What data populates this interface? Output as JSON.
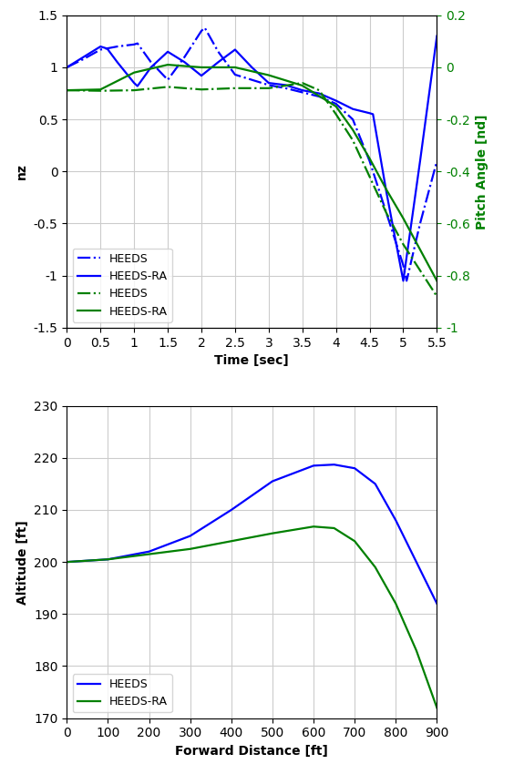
{
  "chart_data": [
    {
      "type": "line",
      "x_label": "Time [sec]",
      "y_label": "nz",
      "y2_label": "Pitch Angle [nd]",
      "xlim": [
        0,
        5.5
      ],
      "xticks": [
        0,
        0.5,
        1,
        1.5,
        2,
        2.5,
        3,
        3.5,
        4,
        4.5,
        5,
        5.5
      ],
      "ylim": [
        -1.5,
        1.5
      ],
      "yticks": [
        -1.5,
        -1,
        -0.5,
        0,
        0.5,
        1,
        1.5
      ],
      "y2lim": [
        -1,
        0.2
      ],
      "y2ticks": [
        -1,
        -0.8,
        -0.6,
        -0.4,
        -0.2,
        0,
        0.2
      ],
      "grid": true,
      "legend": "lower left",
      "series": [
        {
          "name": "HEEDS",
          "color": "#0000ff",
          "line_style": "dashdot",
          "x": [
            0,
            0.25,
            0.5,
            0.75,
            1.0,
            1.05,
            1.25,
            1.5,
            1.75,
            2.0,
            2.05,
            2.25,
            2.5,
            2.75,
            3.0,
            3.25,
            3.5,
            3.75,
            4.0,
            4.25,
            4.5,
            4.75,
            5.0,
            5.05,
            5.25,
            5.5
          ],
          "values": [
            1.0,
            1.08,
            1.17,
            1.2,
            1.22,
            1.23,
            1.05,
            0.88,
            1.1,
            1.35,
            1.38,
            1.15,
            0.93,
            0.88,
            0.83,
            0.8,
            0.76,
            0.72,
            0.65,
            0.5,
            0.1,
            -0.4,
            -0.9,
            -1.05,
            -0.5,
            0.1
          ]
        },
        {
          "name": "HEEDS-RA",
          "color": "#0000ff",
          "line_style": "solid",
          "x": [
            0,
            0.25,
            0.5,
            0.6,
            0.75,
            1.0,
            1.05,
            1.25,
            1.5,
            1.75,
            2.0,
            2.25,
            2.5,
            2.75,
            3.0,
            3.25,
            3.5,
            3.75,
            4.0,
            4.25,
            4.5,
            4.55,
            4.75,
            5.0,
            5.25,
            5.5
          ],
          "values": [
            1.0,
            1.1,
            1.2,
            1.18,
            1.05,
            0.85,
            0.82,
            1.0,
            1.15,
            1.05,
            0.92,
            1.05,
            1.17,
            1.0,
            0.85,
            0.83,
            0.78,
            0.75,
            0.68,
            0.6,
            0.56,
            0.55,
            -0.2,
            -1.05,
            0.1,
            1.3
          ]
        },
        {
          "name": "HEEDS",
          "color": "#008000",
          "line_style": "dashdot",
          "axis": "y2",
          "x": [
            0,
            0.5,
            1.0,
            1.5,
            2.0,
            2.5,
            3.0,
            3.5,
            3.75,
            4.0,
            4.25,
            4.5,
            4.75,
            5.0,
            5.25,
            5.5
          ],
          "values": [
            -0.088,
            -0.09,
            -0.088,
            -0.075,
            -0.085,
            -0.08,
            -0.08,
            -0.06,
            -0.088,
            -0.18,
            -0.28,
            -0.42,
            -0.56,
            -0.68,
            -0.78,
            -0.88
          ]
        },
        {
          "name": "HEEDS-RA",
          "color": "#008000",
          "line_style": "solid",
          "axis": "y2",
          "x": [
            0,
            0.5,
            1.0,
            1.5,
            2.0,
            2.5,
            3.0,
            3.5,
            4.0,
            4.25,
            4.5,
            4.75,
            5.0,
            5.25,
            5.5
          ],
          "values": [
            -0.088,
            -0.085,
            -0.02,
            0.01,
            0.0,
            0.0,
            -0.03,
            -0.07,
            -0.15,
            -0.24,
            -0.35,
            -0.47,
            -0.58,
            -0.7,
            -0.82
          ]
        }
      ]
    },
    {
      "type": "line",
      "x_label": "Forward Distance [ft]",
      "y_label": "Altitude [ft]",
      "xlim": [
        0,
        900
      ],
      "xticks": [
        0,
        100,
        200,
        300,
        400,
        500,
        600,
        700,
        800,
        900
      ],
      "ylim": [
        170,
        230
      ],
      "yticks": [
        170,
        180,
        190,
        200,
        210,
        220,
        230
      ],
      "grid": true,
      "legend": "lower left",
      "series": [
        {
          "name": "HEEDS",
          "color": "#0000ff",
          "line_style": "solid",
          "x": [
            0,
            100,
            200,
            300,
            400,
            500,
            600,
            650,
            700,
            750,
            800,
            850,
            900
          ],
          "values": [
            200,
            200.5,
            202,
            205,
            210,
            215.5,
            218.5,
            218.7,
            218,
            215,
            208,
            200,
            192
          ]
        },
        {
          "name": "HEEDS-RA",
          "color": "#008000",
          "line_style": "solid",
          "x": [
            0,
            100,
            200,
            300,
            400,
            500,
            600,
            650,
            700,
            750,
            800,
            850,
            900
          ],
          "values": [
            200,
            200.5,
            201.5,
            202.5,
            204,
            205.5,
            206.8,
            206.5,
            204,
            199,
            192,
            183,
            172
          ]
        }
      ]
    }
  ]
}
